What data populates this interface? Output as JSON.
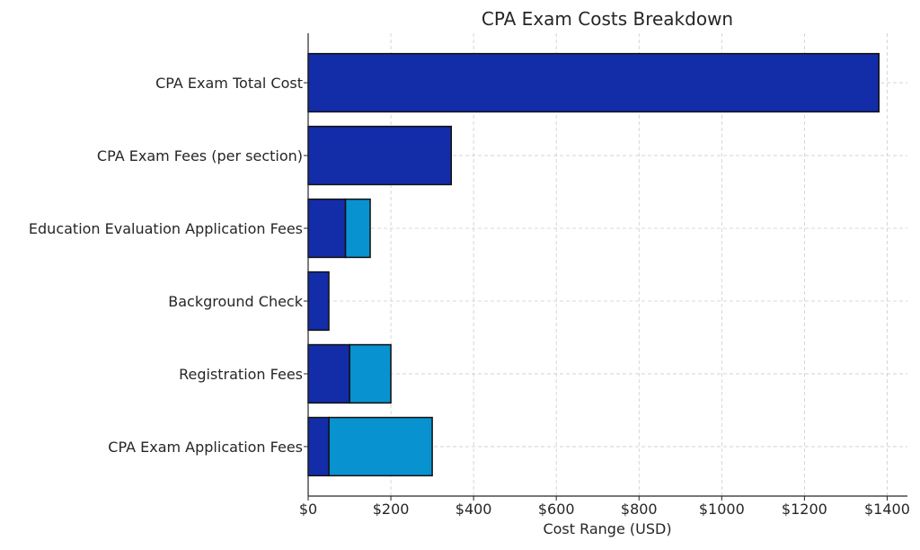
{
  "chart_data": {
    "type": "bar",
    "orientation": "horizontal",
    "stacked_range": true,
    "title": "CPA Exam Costs Breakdown",
    "xlabel": "Cost Range (USD)",
    "ylabel": "",
    "xlim": [
      0,
      1449
    ],
    "x_ticks": [
      0,
      200,
      400,
      600,
      800,
      1000,
      1200,
      1400
    ],
    "x_tick_labels": [
      "$0",
      "$200",
      "$400",
      "$600",
      "$800",
      "$1000",
      "$1200",
      "$1400"
    ],
    "grid": true,
    "categories": [
      "CPA Exam Application Fees",
      "Registration Fees",
      "Background Check",
      "Education Evaluation Application Fees",
      "CPA Exam Fees (per section)",
      "CPA Exam Total Cost"
    ],
    "series": [
      {
        "values": [
          50,
          100,
          50,
          90,
          346,
          1380
        ],
        "color": "#132ca8"
      },
      {
        "values": [
          300,
          200,
          50,
          150,
          346,
          1380
        ],
        "color": "#0892d0"
      }
    ]
  }
}
